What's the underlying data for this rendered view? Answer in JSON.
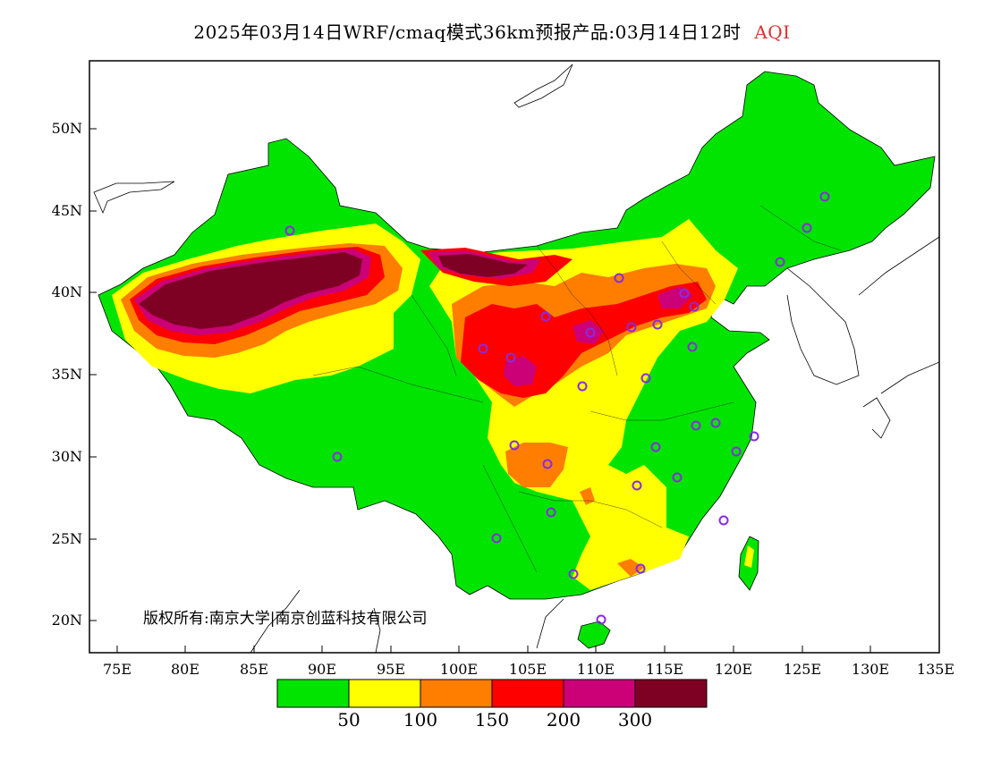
{
  "title": {
    "main": "2025年03月14日WRF/cmaq模式36km预报产品:03月14日12时",
    "variable": "AQI"
  },
  "axes": {
    "y_ticks": [
      "50N",
      "45N",
      "40N",
      "35N",
      "30N",
      "25N",
      "20N"
    ],
    "x_ticks": [
      "75E",
      "80E",
      "85E",
      "90E",
      "95E",
      "100E",
      "105E",
      "110E",
      "115E",
      "120E",
      "125E",
      "130E",
      "135E"
    ]
  },
  "copyright": "版权所有:南京大学|南京创蓝科技有限公司",
  "legend": {
    "colors": [
      "#00e400",
      "#ffff00",
      "#ff7e00",
      "#ff0000",
      "#cc0077",
      "#7e0023"
    ],
    "labels": [
      "50",
      "100",
      "150",
      "200",
      "300"
    ]
  },
  "map": {
    "colors": {
      "good": "#00e400",
      "moderate": "#ffff00",
      "usg": "#ff7e00",
      "unhealthy": "#ff0000",
      "very_unhealthy": "#cc0077",
      "hazardous": "#7e0023",
      "station": "#8a2be2"
    }
  }
}
